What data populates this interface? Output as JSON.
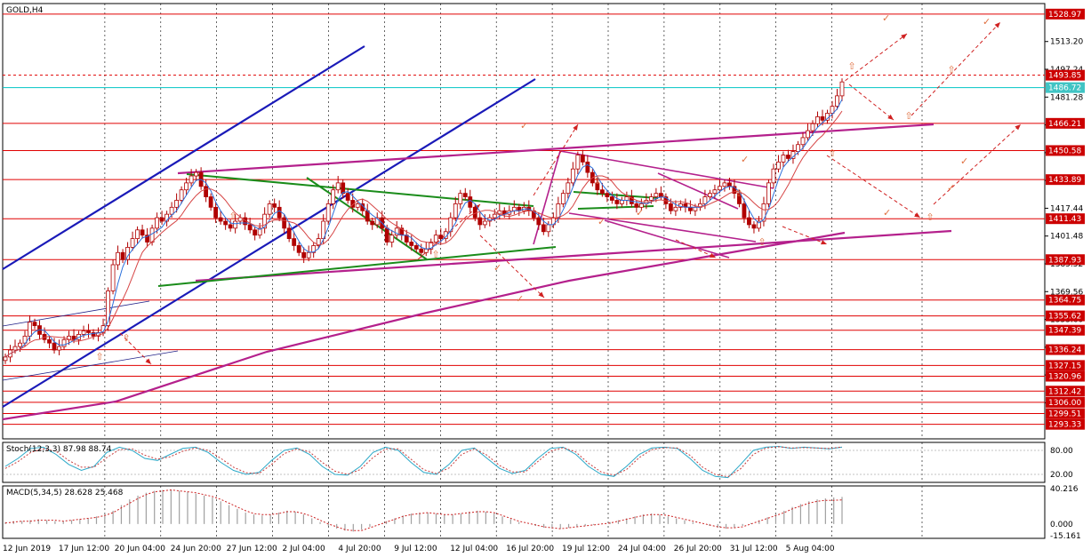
{
  "window": {
    "symbol_label": "GOLD,H4"
  },
  "indicators": {
    "stoch_label": "Stoch(12,3,3) 87.98 88.74",
    "macd_label": "MACD(5,34,5) 28.628 25.468",
    "stoch_scale": [
      "80.00",
      "20.00"
    ],
    "macd_scale": [
      "40.216",
      "0.000",
      "-15.161"
    ]
  },
  "chart_data": [
    {
      "type": "candlestick",
      "title": "GOLD,H4",
      "xlabel": "",
      "ylabel": "",
      "x_ticks": [
        "12 Jun 2019",
        "17 Jun 12:00",
        "20 Jun 04:00",
        "24 Jun 20:00",
        "27 Jun 12:00",
        "2 Jul 04:00",
        "4 Jul 20:00",
        "9 Jul 12:00",
        "12 Jul 04:00",
        "16 Jul 20:00",
        "19 Jul 12:00",
        "24 Jul 04:00",
        "26 Jul 20:00",
        "31 Jul 12:00",
        "5 Aug 04:00"
      ],
      "y_ticks": [
        1513.2,
        1497.24,
        1481.28,
        1465.32,
        1449.36,
        1433.4,
        1417.44,
        1401.48,
        1385.52,
        1369.56,
        1353.6,
        1337.64,
        1321.68,
        1305.72
      ],
      "ylim": [
        1285.0,
        1535.0
      ],
      "grid": true,
      "price_levels": [
        1528.97,
        1493.85,
        1466.21,
        1450.58,
        1433.89,
        1411.43,
        1387.93,
        1364.75,
        1355.62,
        1347.39,
        1336.24,
        1327.15,
        1320.96,
        1312.42,
        1306.0,
        1299.51,
        1293.33
      ],
      "current_price": 1486.72,
      "series": [
        {
          "name": "",
          "close": [
            1332,
            1336,
            1338,
            1340,
            1344,
            1352,
            1350,
            1345,
            1342,
            1340,
            1336,
            1338,
            1342,
            1344,
            1342,
            1345,
            1347,
            1346,
            1344,
            1346,
            1350,
            1370,
            1385,
            1392,
            1388,
            1395,
            1400,
            1405,
            1402,
            1398,
            1406,
            1412,
            1410,
            1414,
            1418,
            1422,
            1428,
            1432,
            1436,
            1438,
            1430,
            1424,
            1418,
            1412,
            1410,
            1408,
            1406,
            1410,
            1412,
            1408,
            1405,
            1402,
            1406,
            1414,
            1420,
            1418,
            1412,
            1406,
            1400,
            1396,
            1392,
            1389,
            1392,
            1396,
            1400,
            1410,
            1420,
            1428,
            1432,
            1426,
            1422,
            1418,
            1420,
            1416,
            1410,
            1408,
            1412,
            1406,
            1398,
            1402,
            1406,
            1402,
            1398,
            1396,
            1394,
            1392,
            1394,
            1398,
            1402,
            1400,
            1404,
            1412,
            1420,
            1426,
            1424,
            1418,
            1412,
            1408,
            1410,
            1412,
            1414,
            1416,
            1414,
            1416,
            1418,
            1416,
            1418,
            1416,
            1412,
            1408,
            1404,
            1408,
            1412,
            1420,
            1426,
            1432,
            1440,
            1448,
            1444,
            1438,
            1432,
            1428,
            1426,
            1424,
            1422,
            1420,
            1422,
            1424,
            1420,
            1418,
            1420,
            1422,
            1424,
            1426,
            1424,
            1420,
            1416,
            1418,
            1420,
            1418,
            1416,
            1418,
            1420,
            1424,
            1426,
            1428,
            1430,
            1432,
            1430,
            1426,
            1420,
            1412,
            1408,
            1406,
            1410,
            1420,
            1432,
            1440,
            1444,
            1448,
            1446,
            1450,
            1454,
            1458,
            1462,
            1466,
            1470,
            1468,
            1472,
            1476,
            1482,
            1490
          ]
        },
        {
          "name": "Stoch(12,3,3)",
          "main": [
            40,
            60,
            85,
            88,
            70,
            45,
            30,
            40,
            75,
            88,
            80,
            60,
            55,
            70,
            85,
            88,
            75,
            50,
            30,
            20,
            25,
            55,
            80,
            86,
            70,
            40,
            20,
            18,
            40,
            75,
            88,
            80,
            50,
            25,
            20,
            45,
            80,
            86,
            60,
            35,
            22,
            30,
            60,
            85,
            88,
            70,
            40,
            20,
            15,
            40,
            70,
            86,
            88,
            85,
            60,
            30,
            15,
            12,
            45,
            80,
            88,
            90,
            85,
            88,
            86,
            84,
            87.98
          ],
          "signal": [
            35,
            52,
            75,
            84,
            78,
            55,
            38,
            38,
            62,
            82,
            84,
            68,
            58,
            64,
            78,
            86,
            80,
            60,
            38,
            24,
            22,
            45,
            72,
            84,
            76,
            50,
            28,
            20,
            32,
            62,
            84,
            84,
            58,
            32,
            22,
            36,
            70,
            84,
            68,
            42,
            26,
            26,
            52,
            78,
            87,
            76,
            48,
            26,
            18,
            32,
            62,
            82,
            87,
            86,
            68,
            38,
            20,
            14,
            34,
            70,
            86,
            89,
            86,
            87,
            86,
            85,
            88.74
          ],
          "ylim": [
            0,
            100
          ],
          "levels": [
            80,
            20
          ]
        },
        {
          "name": "MACD(5,34,5)",
          "histogram": [
            2,
            3,
            3,
            4,
            5,
            4,
            3,
            3,
            4,
            5,
            6,
            8,
            10,
            14,
            20,
            26,
            30,
            33,
            35,
            36,
            36,
            35,
            34,
            32,
            30,
            28,
            24,
            20,
            16,
            12,
            10,
            9,
            10,
            12,
            14,
            13,
            10,
            6,
            2,
            -2,
            -5,
            -7,
            -8,
            -6,
            -3,
            0,
            3,
            6,
            9,
            11,
            12,
            12,
            11,
            10,
            10,
            11,
            13,
            14,
            13,
            11,
            8,
            5,
            2,
            0,
            -2,
            -4,
            -5,
            -5,
            -4,
            -3,
            -2,
            -1,
            0,
            2,
            4,
            6,
            8,
            10,
            11,
            10,
            8,
            6,
            4,
            2,
            0,
            -2,
            -4,
            -5,
            -4,
            -2,
            1,
            4,
            7,
            10,
            14,
            18,
            21,
            24,
            26,
            27,
            28,
            28.628
          ],
          "signal": [
            1,
            2,
            3,
            3,
            4,
            4,
            4,
            3,
            4,
            5,
            6,
            7,
            9,
            12,
            17,
            22,
            27,
            31,
            34,
            35,
            36,
            35,
            34,
            33,
            31,
            29,
            26,
            22,
            18,
            14,
            11,
            10,
            10,
            11,
            13,
            13,
            11,
            8,
            4,
            0,
            -3,
            -6,
            -7,
            -7,
            -4,
            -1,
            2,
            5,
            8,
            10,
            11,
            12,
            11,
            10,
            10,
            11,
            12,
            13,
            13,
            12,
            9,
            6,
            3,
            1,
            -1,
            -3,
            -4,
            -5,
            -4,
            -3,
            -2,
            -1,
            0,
            1,
            3,
            5,
            7,
            9,
            10,
            10,
            9,
            7,
            5,
            3,
            1,
            -1,
            -3,
            -4,
            -4,
            -3,
            0,
            3,
            6,
            9,
            12,
            16,
            19,
            22,
            24,
            25,
            25,
            25.468
          ],
          "ylim": [
            -15.161,
            40.216
          ]
        }
      ]
    }
  ],
  "colors": {
    "level_line": "#e00000",
    "level_label_bg": "#cc0000",
    "current_line": "#00c4c4",
    "current_label_bg": "#40c4c4",
    "trend_blue": "#1a1ab8",
    "trend_magenta": "#b4208c",
    "trend_green": "#1a8c1a",
    "candle": "#b00000",
    "ma_fast": "#2a6fdb",
    "ma_slow": "#d64545",
    "ma_long": "#c0247c",
    "stoch_main": "#2aa8c8",
    "stoch_signal": "#c83c3c",
    "macd_hist": "#a0a0a0",
    "macd_signal": "#cc2020",
    "arrow": "#d02020",
    "marker": "#e07040"
  }
}
